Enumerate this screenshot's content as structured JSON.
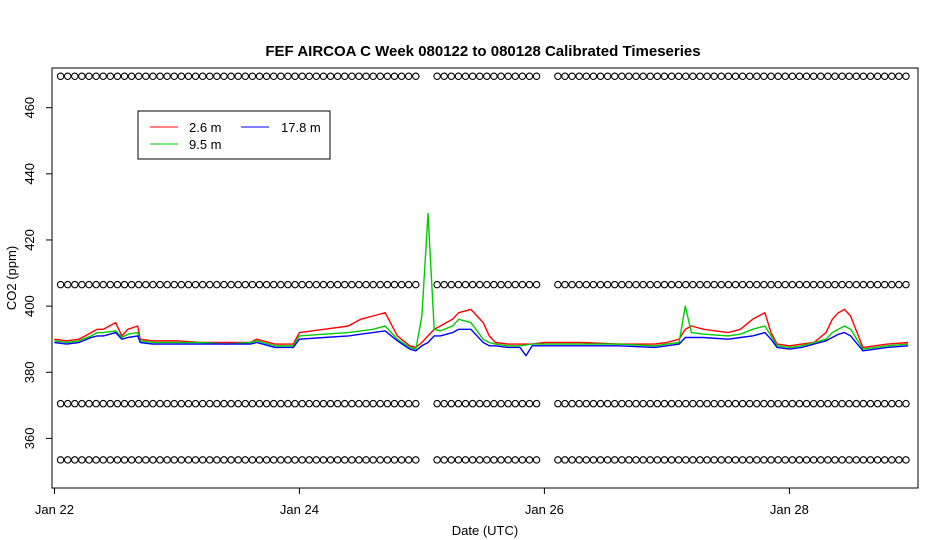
{
  "chart_data": {
    "type": "line",
    "title": "FEF AIRCOA C  Week 080122 to 080128  Calibrated Timeseries",
    "xlabel": "Date (UTC)",
    "ylabel": "CO2 (ppm)",
    "xlim": [
      -0.02,
      7.05
    ],
    "ylim": [
      345,
      472
    ],
    "x_ticks": [
      {
        "value": 0,
        "label": "Jan 22"
      },
      {
        "value": 2,
        "label": "Jan 24"
      },
      {
        "value": 4,
        "label": "Jan 26"
      },
      {
        "value": 6,
        "label": "Jan 28"
      }
    ],
    "y_ticks": [
      360,
      380,
      400,
      420,
      440,
      460
    ],
    "legend": {
      "position": "top-left",
      "entries": [
        {
          "name": "2.6 m",
          "color": "#ff0000"
        },
        {
          "name": "9.5 m",
          "color": "#00cc00"
        },
        {
          "name": "17.8 m",
          "color": "#0000ff"
        }
      ]
    },
    "series": [
      {
        "name": "2.6 m",
        "color": "#ff0000",
        "x": [
          0,
          0.1,
          0.2,
          0.3,
          0.35,
          0.4,
          0.5,
          0.55,
          0.6,
          0.68,
          0.7,
          0.8,
          1.0,
          1.2,
          1.4,
          1.6,
          1.65,
          1.7,
          1.8,
          1.95,
          2.0,
          2.2,
          2.4,
          2.5,
          2.6,
          2.7,
          2.8,
          2.9,
          2.95,
          3.0,
          3.05,
          3.1,
          3.15,
          3.25,
          3.3,
          3.4,
          3.5,
          3.55,
          3.6,
          3.7,
          3.8,
          3.9,
          4.0,
          4.3,
          4.6,
          4.9,
          5.0,
          5.1,
          5.15,
          5.2,
          5.3,
          5.5,
          5.6,
          5.7,
          5.8,
          5.85,
          5.9,
          6.0,
          6.1,
          6.2,
          6.3,
          6.35,
          6.4,
          6.45,
          6.5,
          6.6,
          6.8,
          6.97
        ],
        "y": [
          390,
          389.5,
          390,
          392,
          393,
          393,
          395,
          391,
          393,
          394,
          390,
          389.5,
          389.5,
          389,
          389,
          389,
          390,
          389.5,
          388.5,
          388.5,
          392,
          393,
          394,
          396,
          397,
          398,
          391,
          388,
          387.5,
          389,
          391,
          393,
          394,
          396,
          398,
          399,
          395,
          391,
          389,
          388.5,
          388.5,
          388.5,
          389,
          389,
          388.5,
          388.5,
          389,
          390,
          393,
          394,
          393,
          392,
          393,
          396,
          398,
          392,
          388.5,
          388,
          388.5,
          389,
          392,
          396,
          398,
          399,
          397,
          387.5,
          388.5,
          389
        ]
      },
      {
        "name": "9.5 m",
        "color": "#00cc00",
        "x": [
          0,
          0.1,
          0.2,
          0.3,
          0.35,
          0.4,
          0.5,
          0.55,
          0.6,
          0.68,
          0.7,
          0.8,
          1.0,
          1.2,
          1.4,
          1.6,
          1.65,
          1.7,
          1.8,
          1.95,
          2.0,
          2.2,
          2.4,
          2.5,
          2.6,
          2.7,
          2.8,
          2.9,
          2.95,
          3.0,
          3.05,
          3.1,
          3.15,
          3.25,
          3.3,
          3.4,
          3.5,
          3.55,
          3.6,
          3.7,
          3.8,
          3.9,
          4.0,
          4.3,
          4.6,
          4.9,
          5.0,
          5.1,
          5.15,
          5.2,
          5.3,
          5.5,
          5.6,
          5.7,
          5.8,
          5.85,
          5.9,
          6.0,
          6.1,
          6.2,
          6.3,
          6.35,
          6.4,
          6.45,
          6.5,
          6.6,
          6.8,
          6.97
        ],
        "y": [
          389.5,
          389,
          389.5,
          391,
          392,
          392,
          392.5,
          390.5,
          391.5,
          392,
          389.5,
          389,
          389,
          389,
          388.5,
          389,
          389.5,
          389,
          388,
          388,
          391,
          391.5,
          392,
          392.5,
          393,
          394,
          390,
          387.5,
          387,
          397,
          428,
          393,
          392.5,
          394,
          396,
          395,
          390,
          389,
          388.5,
          388,
          388,
          388.5,
          388.5,
          388.5,
          388.5,
          388,
          388.5,
          389,
          400,
          392,
          391.5,
          391,
          391.5,
          393,
          394,
          391,
          388,
          387.5,
          388,
          389,
          390,
          392,
          393,
          394,
          393,
          387,
          388,
          388.5
        ]
      },
      {
        "name": "17.8 m",
        "color": "#0000ff",
        "x": [
          0,
          0.1,
          0.2,
          0.3,
          0.35,
          0.4,
          0.5,
          0.55,
          0.6,
          0.68,
          0.7,
          0.8,
          1.0,
          1.2,
          1.4,
          1.6,
          1.65,
          1.7,
          1.8,
          1.95,
          2.0,
          2.2,
          2.4,
          2.5,
          2.6,
          2.7,
          2.8,
          2.9,
          2.95,
          3.0,
          3.05,
          3.1,
          3.15,
          3.25,
          3.3,
          3.4,
          3.5,
          3.55,
          3.6,
          3.7,
          3.8,
          3.85,
          3.9,
          4.0,
          4.3,
          4.6,
          4.9,
          5.0,
          5.1,
          5.15,
          5.2,
          5.3,
          5.5,
          5.6,
          5.7,
          5.8,
          5.85,
          5.9,
          6.0,
          6.1,
          6.2,
          6.3,
          6.35,
          6.4,
          6.45,
          6.5,
          6.6,
          6.8,
          6.97
        ],
        "y": [
          389,
          388.5,
          389,
          390.5,
          391,
          391,
          392,
          390,
          390.5,
          391,
          389,
          388.5,
          388.5,
          388.5,
          388.5,
          388.5,
          389,
          388.5,
          387.5,
          387.5,
          390,
          390.5,
          391,
          391.5,
          392,
          392.5,
          389.5,
          387,
          386.5,
          388,
          389,
          391,
          391,
          392,
          393,
          393,
          389,
          388,
          388,
          387.5,
          387.5,
          385,
          388,
          388,
          388,
          388,
          387.5,
          388,
          388.5,
          390.5,
          390.5,
          390.5,
          390,
          390.5,
          391,
          392,
          390,
          387.5,
          387,
          387.5,
          388.5,
          389.5,
          390.5,
          391.5,
          392,
          391,
          386.5,
          387.5,
          388
        ]
      }
    ],
    "marker_rows": [
      {
        "y": 469.5,
        "gaps": [
          [
            3.0,
            3.1
          ],
          [
            3.95,
            4.1
          ]
        ]
      },
      {
        "y": 406.5,
        "gaps": [
          [
            3.0,
            3.1
          ],
          [
            3.95,
            4.1
          ]
        ]
      },
      {
        "y": 370.5,
        "gaps": [
          [
            3.0,
            3.1
          ],
          [
            3.95,
            4.1
          ]
        ]
      },
      {
        "y": 353.5,
        "gaps": [
          [
            3.0,
            3.1
          ],
          [
            3.95,
            4.1
          ]
        ]
      }
    ]
  }
}
